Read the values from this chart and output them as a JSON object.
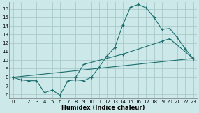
{
  "xlabel": "Humidex (Indice chaleur)",
  "bg_color": "#cce8e8",
  "grid_color": "#aacaca",
  "line_color": "#1a6e6e",
  "xlim": [
    -0.5,
    23.5
  ],
  "ylim": [
    5.5,
    16.8
  ],
  "xticks": [
    0,
    1,
    2,
    3,
    4,
    5,
    6,
    7,
    8,
    9,
    10,
    11,
    12,
    13,
    14,
    15,
    16,
    17,
    18,
    19,
    20,
    21,
    22,
    23
  ],
  "yticks": [
    6,
    7,
    8,
    9,
    10,
    11,
    12,
    13,
    14,
    15,
    16
  ],
  "line1_x": [
    0,
    1,
    2,
    3,
    4,
    5,
    6,
    7,
    8,
    9,
    10,
    11,
    12,
    13,
    14,
    15,
    16,
    17,
    18,
    19,
    20,
    21,
    22,
    23
  ],
  "line1_y": [
    8.0,
    7.7,
    7.6,
    7.6,
    6.2,
    6.5,
    5.9,
    7.6,
    7.7,
    7.6,
    8.0,
    9.2,
    10.5,
    11.5,
    14.1,
    16.2,
    16.5,
    16.1,
    15.0,
    13.6,
    13.7,
    12.6,
    11.3,
    10.2
  ],
  "line2_x": [
    0,
    8,
    9,
    14,
    19,
    20,
    23
  ],
  "line2_y": [
    8.0,
    8.0,
    9.5,
    10.7,
    12.2,
    12.5,
    10.2
  ],
  "line3_x": [
    0,
    23
  ],
  "line3_y": [
    8.0,
    10.2
  ]
}
